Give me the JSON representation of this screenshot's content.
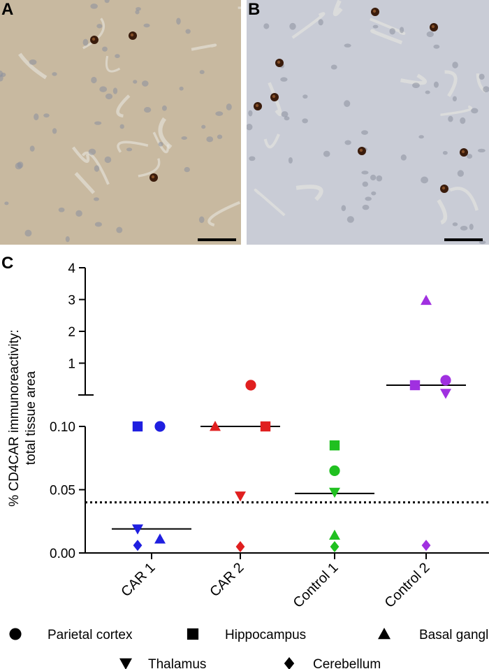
{
  "panels": {
    "a_label": "A",
    "b_label": "B",
    "c_label": "C"
  },
  "micrographs": {
    "a_background": "#c8b9a0",
    "b_background": "#c9ccd6",
    "stain_color": "#3a1c0c",
    "nucleus_color": "#8b8f9e"
  },
  "chart_data": {
    "type": "scatter",
    "title": "",
    "ylabel_line1": "% CD4CAR immunoreactivity:",
    "ylabel_line2": "total tissue area",
    "xlabel": "",
    "categories": [
      "CAR 1",
      "CAR 2",
      "Control 1",
      "Control 2"
    ],
    "y_axis_segments": [
      {
        "name": "lower",
        "ylim": [
          0,
          0.1
        ],
        "ticks": [
          "0.00",
          "0.05",
          "0.10"
        ],
        "tick_values": [
          0,
          0.05,
          0.1
        ]
      },
      {
        "name": "upper",
        "ylim": [
          0.1,
          4
        ],
        "ticks": [
          "1",
          "2",
          "3",
          "4"
        ],
        "tick_values": [
          1,
          2,
          3,
          4
        ]
      }
    ],
    "threshold": 0.04,
    "threshold_style": "dotted",
    "series": [
      {
        "name": "Parietal cortex",
        "marker": "circle",
        "values": [
          0.1,
          0.4,
          0.065,
          0.55
        ]
      },
      {
        "name": "Hippocampus",
        "marker": "square",
        "values": [
          0.1,
          0.1,
          0.085,
          0.4
        ]
      },
      {
        "name": "Basal ganglia",
        "marker": "triangle-up",
        "values": [
          0.011,
          0.1,
          0.014,
          3.0
        ]
      },
      {
        "name": "Thalamus",
        "marker": "triangle-down",
        "values": [
          0.019,
          0.045,
          0.048,
          0.15
        ]
      },
      {
        "name": "Cerebellum",
        "marker": "diamond",
        "values": [
          0.006,
          0.005,
          0.005,
          0.006
        ]
      }
    ],
    "group_colors": [
      "#1f1fe0",
      "#e01f1f",
      "#20c020",
      "#a030e0"
    ],
    "medians": [
      0.019,
      0.1,
      0.047,
      0.4
    ],
    "legend": {
      "placement": "bottom",
      "items": [
        "Parietal cortex",
        "Hippocampus",
        "Basal ganglia",
        "Thalamus",
        "Cerebellum"
      ]
    },
    "grid": false
  }
}
